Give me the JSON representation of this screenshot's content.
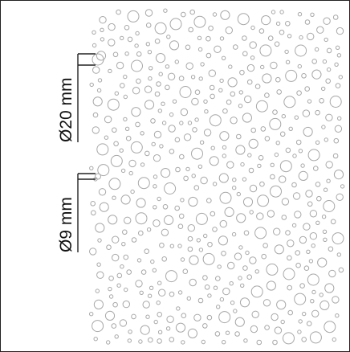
{
  "labels": {
    "large_diameter": "Ø20 mm",
    "small_diameter": "Ø9 mm"
  },
  "colors": {
    "circle_stroke": "#a8a8a8",
    "dimension_line": "#222222",
    "frame": "#222222"
  }
}
